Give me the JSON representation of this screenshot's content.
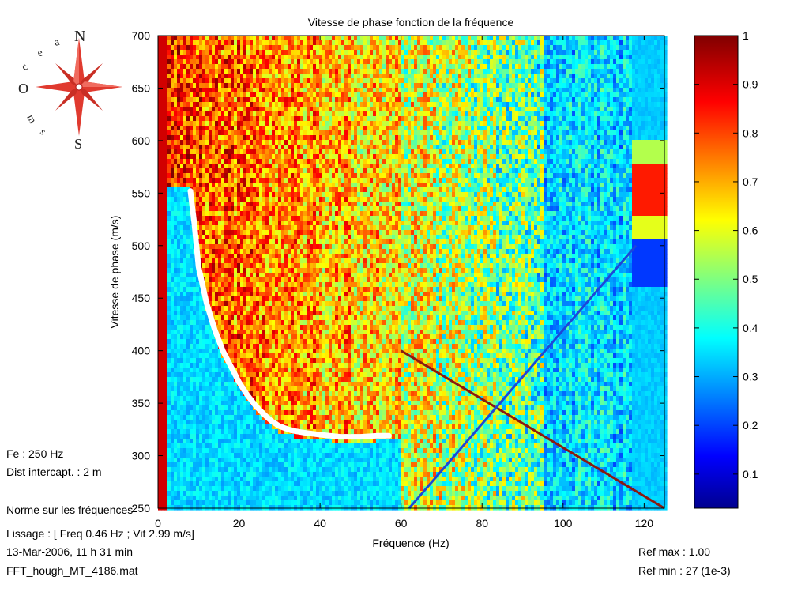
{
  "chart_data": {
    "type": "heatmap",
    "title": "Vitesse de phase fonction de la fréquence",
    "xlabel": "Fréquence (Hz)",
    "ylabel": "Vitesse de phase (m/s)",
    "xlim": [
      0,
      125
    ],
    "ylim": [
      250,
      700
    ],
    "x_ticks": [
      "0",
      "20",
      "40",
      "60",
      "80",
      "100",
      "120"
    ],
    "x_tick_values": [
      0,
      20,
      40,
      60,
      80,
      100,
      120
    ],
    "y_ticks": [
      "250",
      "300",
      "350",
      "400",
      "450",
      "500",
      "550",
      "600",
      "650",
      "700"
    ],
    "y_tick_values": [
      250,
      300,
      350,
      400,
      450,
      500,
      550,
      600,
      650,
      700
    ],
    "colorbar": {
      "colormap": "jet",
      "range": [
        0.03,
        1
      ],
      "ticks": [
        "0.1",
        "0.2",
        "0.3",
        "0.4",
        "0.5",
        "0.6",
        "0.7",
        "0.8",
        "0.9",
        "1"
      ],
      "tick_values": [
        0.1,
        0.2,
        0.3,
        0.4,
        0.5,
        0.6,
        0.7,
        0.8,
        0.9,
        1.0
      ]
    },
    "dispersion_curve": {
      "color": "#ffffff",
      "points": [
        [
          8,
          552
        ],
        [
          9,
          520
        ],
        [
          10,
          480
        ],
        [
          12,
          445
        ],
        [
          14,
          420
        ],
        [
          16,
          400
        ],
        [
          18,
          385
        ],
        [
          20,
          370
        ],
        [
          22,
          358
        ],
        [
          24,
          348
        ],
        [
          26,
          340
        ],
        [
          28,
          333
        ],
        [
          30,
          328
        ],
        [
          33,
          324
        ],
        [
          36,
          322
        ],
        [
          40,
          320
        ],
        [
          45,
          318
        ],
        [
          50,
          318
        ],
        [
          54,
          319
        ],
        [
          57,
          319
        ]
      ]
    },
    "aliased_lines": [
      {
        "color": "#8b1a10",
        "from": [
          60,
          400
        ],
        "to": [
          125,
          250
        ]
      },
      {
        "color": "#1d47d8",
        "from": [
          62,
          250
        ],
        "to": [
          118,
          500
        ]
      }
    ]
  },
  "logo": {
    "letters": [
      "N",
      "S",
      "O",
      "c",
      "e",
      "a",
      "s",
      "m"
    ],
    "colors": {
      "rose": "#e03a2f",
      "text": "#222222"
    }
  },
  "info": {
    "fe": "Fe : 250 Hz",
    "dist": "Dist intercapt. : 2 m",
    "norme": "Norme sur les fréquences",
    "lissage": "Lissage : [ Freq 0.46 Hz ; Vit 2.99 m/s]",
    "date": "13-Mar-2006,  11 h 31 min",
    "file": "FFT_hough_MT_4186.mat",
    "ref_max": "Ref max :  1.00",
    "ref_min": "Ref min : 27 (1e-3)"
  }
}
